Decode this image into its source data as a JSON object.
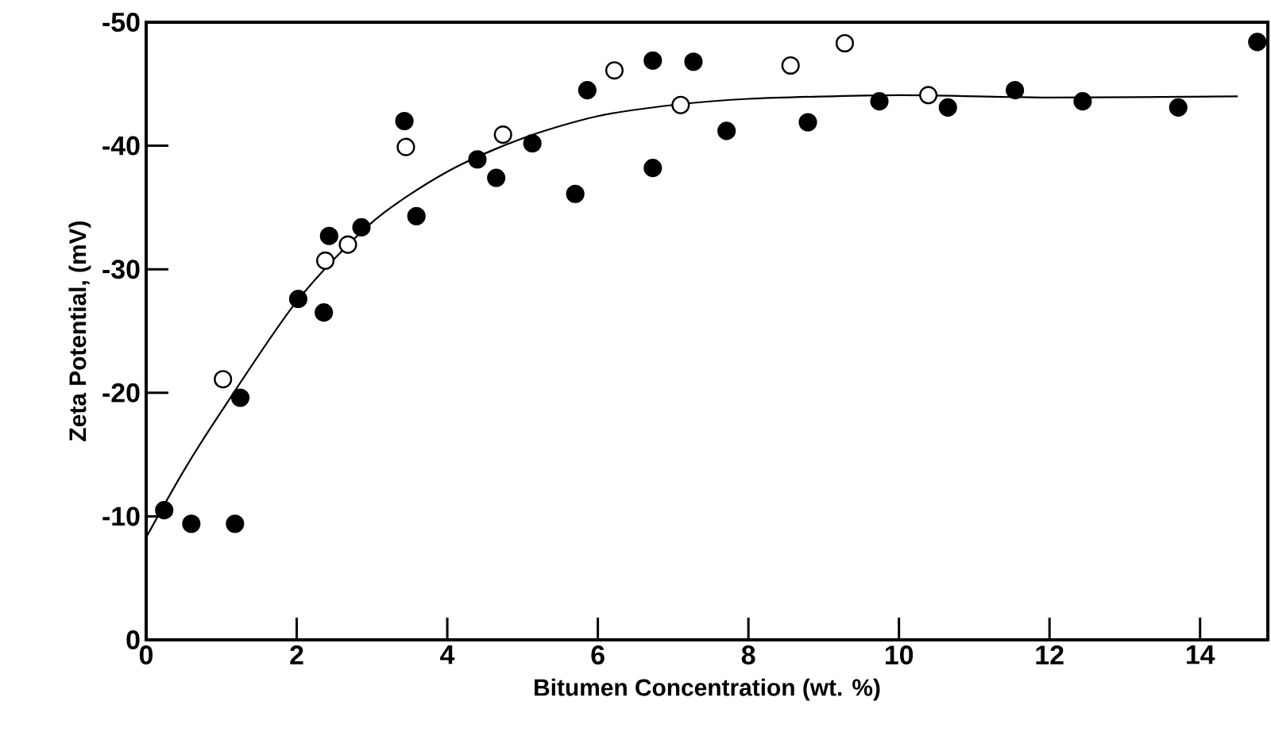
{
  "chart_data": {
    "type": "scatter",
    "xlabel": "Bitumen Concentration (wt. %)",
    "ylabel": "Zeta Potential, (mV)",
    "xlim": [
      0,
      14.9
    ],
    "xticks": [
      0,
      2,
      4,
      6,
      8,
      10,
      12,
      14
    ],
    "ylim": [
      0,
      -50
    ],
    "yticks": [
      0,
      -10,
      -20,
      -30,
      -40,
      -50
    ],
    "marker": "circle",
    "grid": false,
    "series": [
      {
        "color": "#000000",
        "x": [
          0.24,
          0.6,
          1.18,
          1.25,
          2.02,
          2.36,
          2.43,
          2.86,
          3.43,
          3.59,
          4.4,
          4.65,
          5.13,
          5.7,
          5.86,
          6.73,
          6.73,
          7.27,
          7.71,
          8.79,
          9.74,
          10.65,
          11.54,
          12.44,
          13.71,
          14.76
        ],
        "values": [
          -10.5,
          -9.4,
          -9.4,
          -19.6,
          -27.6,
          -26.5,
          -32.7,
          -33.4,
          -42.0,
          -34.3,
          -38.9,
          -37.4,
          -40.2,
          -36.1,
          -44.5,
          -46.9,
          -38.2,
          -46.8,
          -41.2,
          -41.9,
          -43.6,
          -43.1,
          -44.5,
          -43.6,
          -43.1,
          -48.4
        ]
      },
      {
        "color": "#ffffff",
        "x": [
          1.02,
          2.38,
          2.68,
          3.45,
          4.74,
          6.22,
          7.1,
          8.56,
          9.28,
          10.39
        ],
        "values": [
          -21.1,
          -30.7,
          -32.0,
          -39.9,
          -40.9,
          -46.1,
          -43.3,
          -46.5,
          -48.3,
          -44.1
        ]
      },
      {
        "type": "line",
        "color": "#000000",
        "marker": "none",
        "line_style": "solid",
        "x": [
          0,
          0.5,
          1,
          2,
          3,
          4,
          5,
          6,
          7,
          8,
          10,
          12,
          14.5
        ],
        "values": [
          -8.3,
          -13.7,
          -18.5,
          -27.4,
          -33.8,
          -37.9,
          -40.6,
          -42.4,
          -43.3,
          -43.8,
          -44.1,
          -43.9,
          -44.0
        ]
      }
    ]
  }
}
